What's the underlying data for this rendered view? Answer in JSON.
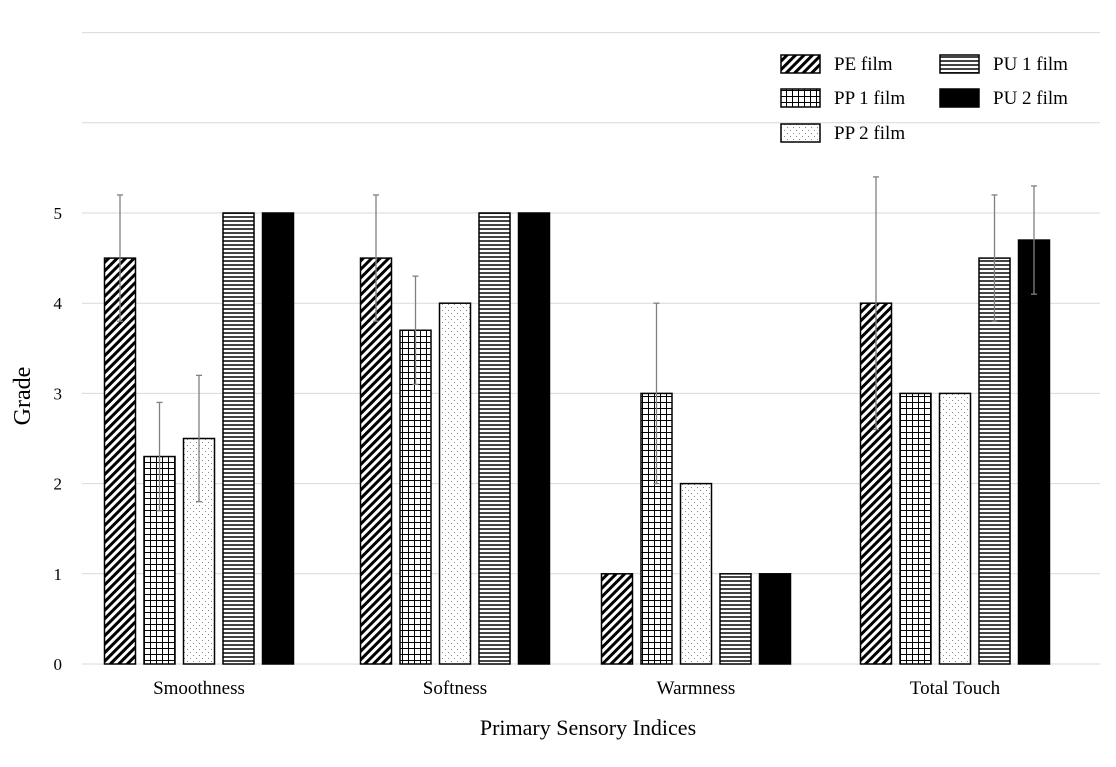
{
  "chart_data": {
    "type": "bar",
    "title": "",
    "xlabel": "Primary Sensory Indices",
    "ylabel": "Grade",
    "ylim": [
      0,
      7
    ],
    "yticks": [
      0,
      1,
      2,
      3,
      4,
      5
    ],
    "gridlines": [
      0,
      1,
      2,
      3,
      4,
      5,
      6,
      7
    ],
    "grid": true,
    "legend_position": "top-right",
    "categories": [
      "Smoothness",
      "Softness",
      "Warmness",
      "Total Touch"
    ],
    "series": [
      {
        "name": "PE film",
        "pattern": "diagonal-hatch",
        "values": [
          4.5,
          4.5,
          1,
          4.0
        ],
        "error": [
          0.7,
          0.7,
          0,
          1.4
        ]
      },
      {
        "name": "PP 1 film",
        "pattern": "grid-hatch",
        "values": [
          2.3,
          3.7,
          3,
          3
        ],
        "error": [
          0.6,
          0.6,
          1.0,
          0
        ]
      },
      {
        "name": "PP 2 film",
        "pattern": "dotted",
        "values": [
          2.5,
          4.0,
          2,
          3
        ],
        "error": [
          0.7,
          0,
          0,
          0
        ]
      },
      {
        "name": "PU 1 film",
        "pattern": "horizontal-lines",
        "values": [
          5,
          5,
          1,
          4.5
        ],
        "error": [
          0,
          0,
          0,
          0.7
        ]
      },
      {
        "name": "PU 2 film",
        "pattern": "solid-black",
        "values": [
          5,
          5,
          1,
          4.7
        ],
        "error": [
          0,
          0,
          0,
          0.6
        ]
      }
    ],
    "colors": {
      "bar_outline": "#000000",
      "grid": "#d9d9d9",
      "error_bar": "#808080",
      "solid": "#000000"
    }
  }
}
